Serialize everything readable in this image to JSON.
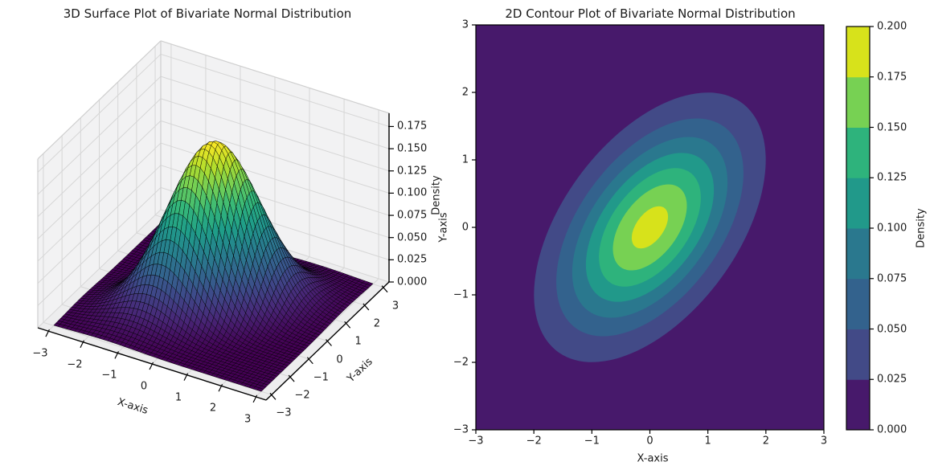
{
  "figure": {
    "background": "#ffffff",
    "text_color": "#1a1a1a"
  },
  "surface_plot": {
    "title": "3D Surface Plot of Bivariate Normal Distribution",
    "xlabel": "X-axis",
    "ylabel": "Y-axis",
    "zlabel": "Density",
    "x_tick_labels": [
      "−3",
      "−2",
      "−1",
      "0",
      "1",
      "2",
      "3"
    ],
    "x_tick_values": [
      -3,
      -2,
      -1,
      0,
      1,
      2,
      3
    ],
    "y_tick_labels": [
      "−3",
      "−2",
      "−1",
      "0",
      "1",
      "2",
      "3"
    ],
    "y_tick_values": [
      -3,
      -2,
      -1,
      0,
      1,
      2,
      3
    ],
    "z_tick_labels": [
      "0.000",
      "0.025",
      "0.050",
      "0.075",
      "0.100",
      "0.125",
      "0.150",
      "0.175"
    ],
    "z_tick_values": [
      0,
      0.025,
      0.05,
      0.075,
      0.1,
      0.125,
      0.15,
      0.175
    ],
    "pane_color": "#f2f2f3",
    "floor_color": "#ededee",
    "grid_color": "#d6d6d6",
    "pane_edge_color": "#cfcfcf",
    "axis_line_color": "#000000",
    "mesh_edge_color": "#000000"
  },
  "contour_plot": {
    "title": "2D Contour Plot of Bivariate Normal Distribution",
    "xlabel": "X-axis",
    "ylabel": "Y-axis",
    "x_tick_labels": [
      "−3",
      "−2",
      "−1",
      "0",
      "1",
      "2",
      "3"
    ],
    "x_tick_values": [
      -3,
      -2,
      -1,
      0,
      1,
      2,
      3
    ],
    "y_tick_labels": [
      "−3",
      "−2",
      "−1",
      "0",
      "1",
      "2",
      "3"
    ],
    "y_tick_values": [
      -3,
      -2,
      -1,
      0,
      1,
      2,
      3
    ],
    "spine_color": "#000000",
    "colorbar": {
      "label": "Density",
      "tick_labels": [
        "0.000",
        "0.025",
        "0.050",
        "0.075",
        "0.100",
        "0.125",
        "0.150",
        "0.175",
        "0.200"
      ],
      "tick_values": [
        0,
        0.025,
        0.05,
        0.075,
        0.1,
        0.125,
        0.15,
        0.175,
        0.2
      ]
    }
  },
  "chart_data": [
    {
      "type": "surface",
      "title": "3D Surface Plot of Bivariate Normal Distribution",
      "distribution": "bivariate_normal",
      "mean": [
        0,
        0
      ],
      "cov": [
        [
          1.0,
          0.5
        ],
        [
          0.5,
          1.0
        ]
      ],
      "rho": 0.5,
      "peak_density": 0.1838,
      "x_range": [
        -3,
        3
      ],
      "y_range": [
        -3,
        3
      ],
      "z_range": [
        0,
        0.184
      ],
      "grid_cells": 50,
      "view": {
        "elev": 30,
        "azim": -60
      },
      "colormap": "viridis",
      "viridis_stops": [
        {
          "t": 0.0,
          "color": "#440154"
        },
        {
          "t": 0.111,
          "color": "#482878"
        },
        {
          "t": 0.222,
          "color": "#3e4989"
        },
        {
          "t": 0.333,
          "color": "#31688e"
        },
        {
          "t": 0.444,
          "color": "#26828e"
        },
        {
          "t": 0.556,
          "color": "#1f9e89"
        },
        {
          "t": 0.667,
          "color": "#35b779"
        },
        {
          "t": 0.778,
          "color": "#6ece58"
        },
        {
          "t": 0.889,
          "color": "#b5de2b"
        },
        {
          "t": 1.0,
          "color": "#fde725"
        }
      ]
    },
    {
      "type": "contour_filled",
      "title": "2D Contour Plot of Bivariate Normal Distribution",
      "distribution": "bivariate_normal",
      "mean": [
        0,
        0
      ],
      "cov": [
        [
          1.0,
          0.5
        ],
        [
          0.5,
          1.0
        ]
      ],
      "rho": 0.5,
      "x_range": [
        -3,
        3
      ],
      "y_range": [
        -3,
        3
      ],
      "levels": [
        0,
        0.025,
        0.05,
        0.075,
        0.1,
        0.125,
        0.15,
        0.175,
        0.2
      ],
      "band_colors": [
        "#47196b",
        "#424a87",
        "#33628d",
        "#2a788e",
        "#21998a",
        "#2eb37c",
        "#77d153",
        "#d7e21b"
      ],
      "colormap": "viridis",
      "colorbar_label": "Density"
    }
  ]
}
